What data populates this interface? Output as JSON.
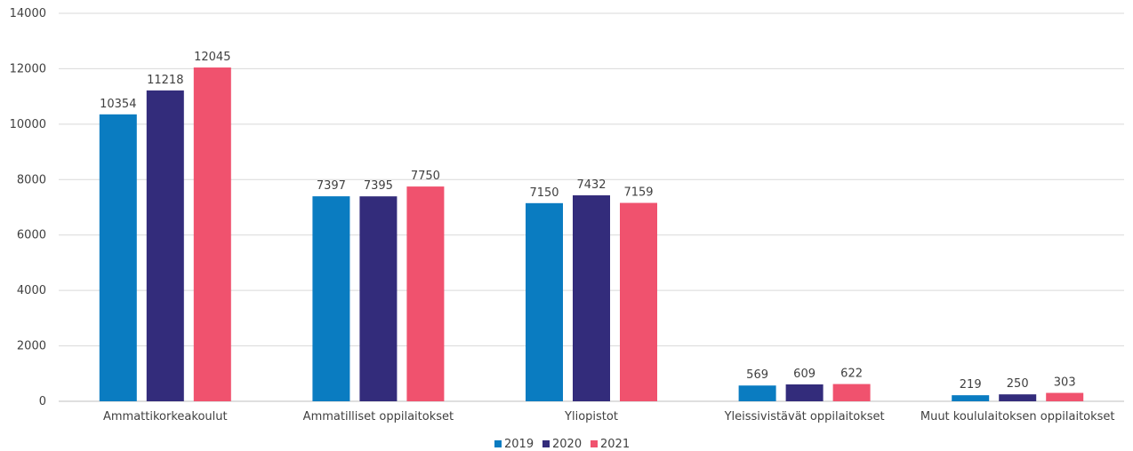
{
  "chart_data": {
    "type": "bar",
    "categories": [
      "Ammattikorkeakoulut",
      "Ammatilliset oppilaitokset",
      "Yliopistot",
      "Yleissivistävät oppilaitokset",
      "Muut koululaitoksen oppilaitokset"
    ],
    "series": [
      {
        "name": "2019",
        "color": "#0a7cc1",
        "values": [
          10354,
          7397,
          7150,
          569,
          219
        ]
      },
      {
        "name": "2020",
        "color": "#332c7b",
        "values": [
          11218,
          7395,
          7432,
          609,
          250
        ]
      },
      {
        "name": "2021",
        "color": "#f0526e",
        "values": [
          12045,
          7750,
          7159,
          622,
          303
        ]
      }
    ],
    "ylim": [
      0,
      14000
    ],
    "yticks": [
      0,
      2000,
      4000,
      6000,
      8000,
      10000,
      12000,
      14000
    ],
    "grid": true,
    "legend_position": "bottom"
  }
}
